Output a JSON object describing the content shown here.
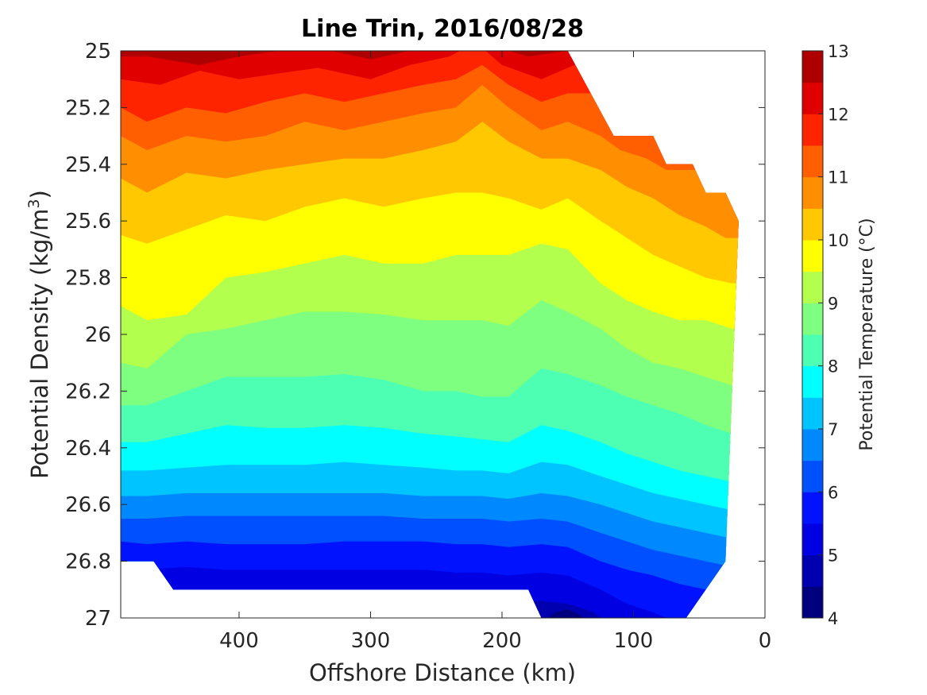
{
  "chart_data": {
    "type": "contourf",
    "title": "Line Trin, 2016/08/28",
    "xlabel": "Offshore Distance (km)",
    "ylabel_main": "Potential Density (kg/m",
    "ylabel_sup": "3",
    "ylabel_end": ")",
    "xlim": [
      490,
      0
    ],
    "ylim": [
      25,
      27
    ],
    "x_reversed": true,
    "y_reversed": true,
    "xticks": [
      400,
      300,
      200,
      100,
      0
    ],
    "xtick_labels": [
      "400",
      "300",
      "200",
      "100",
      "0"
    ],
    "yticks": [
      25,
      25.2,
      25.4,
      25.6,
      25.8,
      26,
      26.2,
      26.4,
      26.6,
      26.8,
      27
    ],
    "ytick_labels": [
      "25",
      "25.2",
      "25.4",
      "25.6",
      "25.8",
      "26",
      "26.2",
      "26.4",
      "26.6",
      "26.8",
      "27"
    ],
    "grid": false,
    "colorbar": {
      "label": "Potential Temperature (°C)",
      "vmin": 4,
      "vmax": 13,
      "step": 0.5,
      "ticks": [
        4,
        5,
        6,
        7,
        8,
        9,
        10,
        11,
        12,
        13
      ],
      "tick_labels": [
        "4",
        "5",
        "6",
        "7",
        "8",
        "9",
        "10",
        "11",
        "12",
        "13"
      ],
      "colors": [
        "#00007f",
        "#0000b0",
        "#0000e2",
        "#0012ff",
        "#0050ff",
        "#0088ff",
        "#00c4ff",
        "#00ffff",
        "#4dffb2",
        "#7fff7f",
        "#b2ff4d",
        "#ffff00",
        "#ffc800",
        "#ff8f00",
        "#ff5f00",
        "#ff2400",
        "#e00000",
        "#ae0000"
      ]
    },
    "domain_x": [
      20,
      490
    ],
    "shallow_edge": [
      [
        20,
        25.6
      ],
      [
        30,
        25.5
      ],
      [
        45,
        25.5
      ],
      [
        55,
        25.4
      ],
      [
        75,
        25.4
      ],
      [
        85,
        25.3
      ],
      [
        105,
        25.3
      ],
      [
        115,
        25.3
      ],
      [
        150,
        25.0
      ]
    ],
    "bottom_edge": [
      [
        30,
        26.8
      ],
      [
        45,
        26.9
      ],
      [
        60,
        27.0
      ],
      [
        170,
        27.0
      ],
      [
        180,
        26.9
      ],
      [
        450,
        26.9
      ],
      [
        465,
        26.8
      ],
      [
        490,
        26.8
      ]
    ],
    "isotherms": [
      {
        "t": 12.5,
        "x": [
          470,
          430,
          400,
          370,
          330,
          300,
          270,
          240,
          210,
          180,
          150
        ],
        "y": [
          25.02,
          25.05,
          25.02,
          25.0,
          25.0,
          25.03,
          25.0,
          25.0,
          24.98,
          25.02,
          25.0
        ]
      },
      {
        "t": 12.0,
        "x": [
          490,
          460,
          430,
          400,
          370,
          340,
          300,
          270,
          240,
          220,
          200,
          170,
          145
        ],
        "y": [
          25.1,
          25.12,
          25.07,
          25.1,
          25.08,
          25.06,
          25.1,
          25.05,
          25.02,
          24.97,
          25.05,
          25.1,
          25.05
        ]
      },
      {
        "t": 11.5,
        "x": [
          490,
          470,
          440,
          410,
          380,
          350,
          320,
          290,
          260,
          235,
          215,
          195,
          170,
          150,
          130
        ],
        "y": [
          25.2,
          25.25,
          25.2,
          25.22,
          25.18,
          25.15,
          25.18,
          25.15,
          25.12,
          25.1,
          25.05,
          25.12,
          25.18,
          25.15,
          25.15
        ]
      },
      {
        "t": 11.0,
        "x": [
          490,
          470,
          440,
          410,
          380,
          350,
          320,
          290,
          260,
          235,
          215,
          195,
          170,
          150,
          125,
          110,
          90,
          75
        ],
        "y": [
          25.3,
          25.35,
          25.3,
          25.32,
          25.3,
          25.25,
          25.28,
          25.25,
          25.22,
          25.2,
          25.12,
          25.2,
          25.28,
          25.25,
          25.3,
          25.35,
          25.38,
          25.42
        ]
      },
      {
        "t": 10.5,
        "x": [
          490,
          470,
          440,
          410,
          380,
          350,
          320,
          290,
          260,
          235,
          215,
          195,
          170,
          150,
          125,
          105,
          85,
          65,
          45,
          30
        ],
        "y": [
          25.45,
          25.5,
          25.43,
          25.45,
          25.42,
          25.4,
          25.38,
          25.38,
          25.35,
          25.32,
          25.25,
          25.32,
          25.38,
          25.38,
          25.42,
          25.48,
          25.52,
          25.58,
          25.62,
          25.66
        ]
      },
      {
        "t": 10.0,
        "x": [
          490,
          470,
          440,
          410,
          380,
          350,
          320,
          290,
          260,
          235,
          215,
          195,
          170,
          150,
          125,
          105,
          85,
          65,
          45,
          25
        ],
        "y": [
          25.65,
          25.68,
          25.63,
          25.58,
          25.6,
          25.55,
          25.52,
          25.55,
          25.52,
          25.5,
          25.5,
          25.52,
          25.56,
          25.52,
          25.6,
          25.66,
          25.72,
          25.76,
          25.8,
          25.82
        ]
      },
      {
        "t": 9.5,
        "x": [
          490,
          470,
          440,
          410,
          380,
          350,
          320,
          290,
          260,
          235,
          215,
          195,
          170,
          150,
          125,
          105,
          85,
          65,
          45,
          25
        ],
        "y": [
          25.9,
          25.95,
          25.93,
          25.8,
          25.78,
          25.75,
          25.72,
          25.75,
          25.75,
          25.72,
          25.72,
          25.72,
          25.68,
          25.7,
          25.82,
          25.88,
          25.92,
          25.95,
          25.95,
          25.98
        ]
      },
      {
        "t": 9.0,
        "x": [
          490,
          470,
          440,
          410,
          380,
          350,
          320,
          290,
          260,
          235,
          215,
          195,
          170,
          150,
          125,
          105,
          85,
          65,
          45,
          25
        ],
        "y": [
          26.1,
          26.12,
          26.0,
          25.98,
          25.95,
          25.92,
          25.92,
          25.93,
          25.95,
          25.95,
          25.95,
          25.97,
          25.88,
          25.92,
          25.98,
          26.05,
          26.1,
          26.12,
          26.15,
          26.18
        ]
      },
      {
        "t": 8.5,
        "x": [
          490,
          470,
          440,
          410,
          380,
          350,
          320,
          290,
          260,
          235,
          215,
          195,
          170,
          150,
          125,
          105,
          85,
          65,
          45,
          25
        ],
        "y": [
          26.25,
          26.25,
          26.2,
          26.15,
          26.15,
          26.15,
          26.14,
          26.16,
          26.2,
          26.2,
          26.22,
          26.22,
          26.12,
          26.14,
          26.18,
          26.22,
          26.25,
          26.28,
          26.32,
          26.35
        ]
      },
      {
        "t": 8.0,
        "x": [
          490,
          470,
          440,
          410,
          380,
          350,
          320,
          290,
          260,
          235,
          215,
          195,
          170,
          150,
          125,
          105,
          85,
          65,
          45,
          25
        ],
        "y": [
          26.38,
          26.38,
          26.35,
          26.32,
          26.33,
          26.33,
          26.32,
          26.33,
          26.35,
          26.36,
          26.37,
          26.38,
          26.32,
          26.34,
          26.38,
          26.42,
          26.45,
          26.48,
          26.5,
          26.52
        ]
      },
      {
        "t": 7.5,
        "x": [
          490,
          470,
          440,
          410,
          380,
          350,
          320,
          290,
          260,
          235,
          215,
          195,
          170,
          150,
          125,
          105,
          85,
          65,
          45,
          25
        ],
        "y": [
          26.48,
          26.48,
          26.47,
          26.46,
          26.46,
          26.46,
          26.45,
          26.46,
          26.47,
          26.48,
          26.48,
          26.49,
          26.45,
          26.46,
          26.5,
          26.53,
          26.56,
          26.58,
          26.6,
          26.62
        ]
      },
      {
        "t": 7.0,
        "x": [
          490,
          470,
          440,
          410,
          380,
          350,
          320,
          290,
          260,
          235,
          215,
          195,
          170,
          150,
          125,
          105,
          85,
          65,
          45,
          25
        ],
        "y": [
          26.57,
          26.57,
          26.56,
          26.56,
          26.56,
          26.56,
          26.56,
          26.56,
          26.57,
          26.57,
          26.57,
          26.58,
          26.56,
          26.57,
          26.6,
          26.63,
          26.66,
          26.68,
          26.7,
          26.72
        ]
      },
      {
        "t": 6.5,
        "x": [
          490,
          470,
          440,
          410,
          380,
          350,
          320,
          290,
          260,
          235,
          215,
          195,
          170,
          150,
          125,
          105,
          85,
          65,
          45,
          25
        ],
        "y": [
          26.65,
          26.65,
          26.64,
          26.64,
          26.64,
          26.64,
          26.64,
          26.64,
          26.65,
          26.65,
          26.65,
          26.66,
          26.65,
          26.66,
          26.7,
          26.73,
          26.76,
          26.78,
          26.8,
          26.82
        ]
      },
      {
        "t": 6.0,
        "x": [
          490,
          470,
          440,
          410,
          380,
          350,
          320,
          290,
          260,
          235,
          215,
          195,
          170,
          150,
          125,
          105,
          85,
          65,
          45,
          25
        ],
        "y": [
          26.73,
          26.74,
          26.73,
          26.74,
          26.74,
          26.74,
          26.73,
          26.73,
          26.73,
          26.74,
          26.74,
          26.75,
          26.74,
          26.75,
          26.8,
          26.83,
          26.85,
          26.88,
          26.9,
          26.92
        ]
      },
      {
        "t": 5.5,
        "x": [
          490,
          470,
          440,
          410,
          380,
          350,
          320,
          290,
          260,
          235,
          215,
          195,
          170,
          150,
          125,
          105,
          85,
          65
        ],
        "y": [
          26.83,
          26.83,
          26.82,
          26.83,
          26.83,
          26.83,
          26.83,
          26.83,
          26.83,
          26.84,
          26.84,
          26.85,
          26.84,
          26.85,
          26.9,
          26.95,
          26.98,
          27.02
        ]
      },
      {
        "t": 5.0,
        "x": [
          490,
          470,
          440,
          410,
          380,
          350,
          320,
          290,
          260,
          235,
          215,
          195,
          170,
          150,
          130,
          120,
          105
        ],
        "y": [
          26.93,
          26.93,
          26.92,
          26.93,
          26.93,
          26.93,
          26.93,
          26.93,
          26.93,
          26.93,
          26.93,
          26.94,
          26.94,
          26.95,
          26.98,
          27.02,
          27.06
        ]
      },
      {
        "t": 4.5,
        "x": [
          170,
          160,
          150,
          140,
          130
        ],
        "y": [
          27.02,
          26.98,
          26.97,
          26.99,
          27.03
        ]
      }
    ]
  }
}
